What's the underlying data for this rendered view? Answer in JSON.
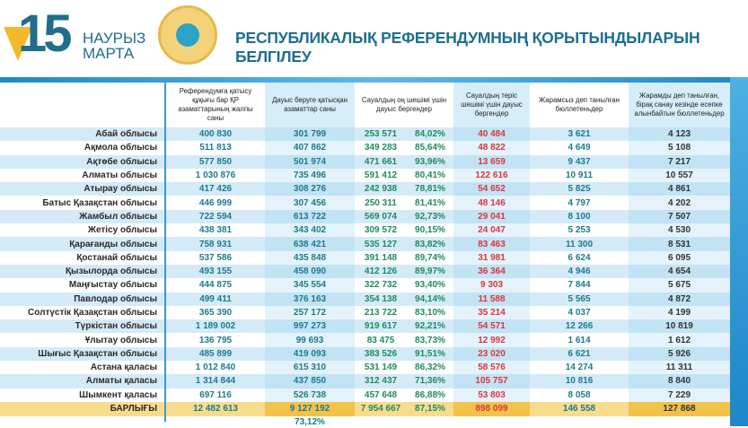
{
  "header": {
    "logo_number": "15",
    "logo_line1": "НАУРЫЗ",
    "logo_line2": "МАРТА",
    "title": "РЕСПУБЛИКАЛЫҚ РЕФЕРЕНДУМНЫҢ ҚОРЫТЫНДЫЛАРЫН БЕЛГІЛЕУ"
  },
  "columns": [
    "Референдумға қатысу құқығы бар ҚР азаматтарының жалпы саны",
    "Дауыс беруге қатысқан азаматтар саны",
    "Сауалдың оң шешімі үшін дауыс бергендер",
    "Сауалдың теріс шешімі үшін дауыс бергендер",
    "Жарамсыз деп танылған бюллетеньдер",
    "Жарамды деп танылған, бірақ санау кезінде есепке алынбайтын бюллетеньдер"
  ],
  "rows": [
    [
      "Абай облысы",
      "400 830",
      "301 799",
      "253 571",
      "84,02%",
      "40 484",
      "3 621",
      "4 123"
    ],
    [
      "Ақмола облысы",
      "511 813",
      "407 862",
      "349 283",
      "85,64%",
      "48 822",
      "4 649",
      "5 108"
    ],
    [
      "Ақтөбе облысы",
      "577 850",
      "501 974",
      "471 661",
      "93,96%",
      "13 659",
      "9 437",
      "7 217"
    ],
    [
      "Алматы облысы",
      "1 030 876",
      "735 496",
      "591 412",
      "80,41%",
      "122 616",
      "10 911",
      "10 557"
    ],
    [
      "Атырау облысы",
      "417 426",
      "308 276",
      "242 938",
      "78,81%",
      "54 652",
      "5 825",
      "4 861"
    ],
    [
      "Батыс Қазақстан облысы",
      "446 999",
      "307 456",
      "250 311",
      "81,41%",
      "48 146",
      "4 797",
      "4 202"
    ],
    [
      "Жамбыл облысы",
      "722 594",
      "613 722",
      "569 074",
      "92,73%",
      "29 041",
      "8 100",
      "7 507"
    ],
    [
      "Жетісу облысы",
      "438 381",
      "343 402",
      "309 572",
      "90,15%",
      "24 047",
      "5 253",
      "4 530"
    ],
    [
      "Қарағанды облысы",
      "758 931",
      "638 421",
      "535 127",
      "83,82%",
      "83 463",
      "11 300",
      "8 531"
    ],
    [
      "Қостанай облысы",
      "537 586",
      "435 848",
      "391 148",
      "89,74%",
      "31 981",
      "6 624",
      "6 095"
    ],
    [
      "Қызылорда облысы",
      "493 155",
      "458 090",
      "412 126",
      "89,97%",
      "36 364",
      "4 946",
      "4 654"
    ],
    [
      "Маңғыстау облысы",
      "444 875",
      "345 554",
      "322 732",
      "93,40%",
      "9 303",
      "7 844",
      "5 675"
    ],
    [
      "Павлодар облысы",
      "499 411",
      "376 163",
      "354 138",
      "94,14%",
      "11 588",
      "5 565",
      "4 872"
    ],
    [
      "Солтүстік Қазақстан облысы",
      "365 390",
      "257 172",
      "213 722",
      "83,10%",
      "35 214",
      "4 037",
      "4 199"
    ],
    [
      "Түркістан облысы",
      "1 189 002",
      "997 273",
      "919 617",
      "92,21%",
      "54 571",
      "12 266",
      "10 819"
    ],
    [
      "Ұлытау облысы",
      "136 795",
      "99 693",
      "83 475",
      "83,73%",
      "12 992",
      "1 614",
      "1 612"
    ],
    [
      "Шығыс Қазақстан облысы",
      "485 899",
      "419 093",
      "383 526",
      "91,51%",
      "23 020",
      "6 621",
      "5 926"
    ],
    [
      "Астана қаласы",
      "1 012 840",
      "615 310",
      "531 149",
      "86,32%",
      "58 576",
      "14 274",
      "11 311"
    ],
    [
      "Алматы қаласы",
      "1 314 844",
      "437 850",
      "312 437",
      "71,36%",
      "105 757",
      "10 816",
      "8 840"
    ],
    [
      "Шымкент қаласы",
      "697 116",
      "526 738",
      "457 648",
      "86,88%",
      "53 803",
      "8 058",
      "7 229"
    ]
  ],
  "total": [
    "БАРЛЫҒЫ",
    "12 482 613",
    "9 127 192",
    "7 954 667",
    "87,15%",
    "898 099",
    "146 558",
    "127 868"
  ],
  "turnout": "73,12%"
}
